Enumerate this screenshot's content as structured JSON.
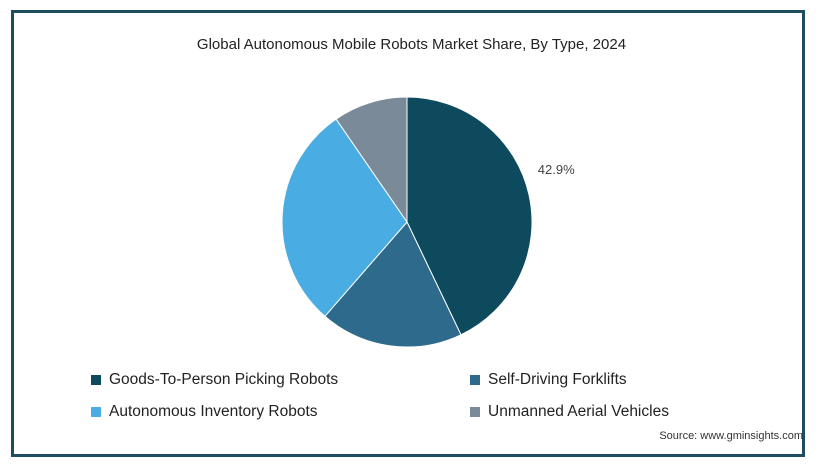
{
  "chart_data": {
    "type": "pie",
    "title": "Global Autonomous Mobile Robots Market Share, By Type, 2024",
    "slices": [
      {
        "name": "Goods-To-Person Picking Robots",
        "value": 42.9,
        "label": "42.9%",
        "color": "#0d4a5e"
      },
      {
        "name": "Self-Driving Forklifts",
        "value": 18.5,
        "label": "",
        "color": "#2d6a8b"
      },
      {
        "name": "Autonomous Inventory Robots",
        "value": 29.0,
        "label": "",
        "color": "#49ade3"
      },
      {
        "name": "Unmanned Aerial Vehicles",
        "value": 9.6,
        "label": "",
        "color": "#7b8a99"
      }
    ],
    "legend_position": "bottom"
  },
  "source": "Source: www.gminsights.com"
}
